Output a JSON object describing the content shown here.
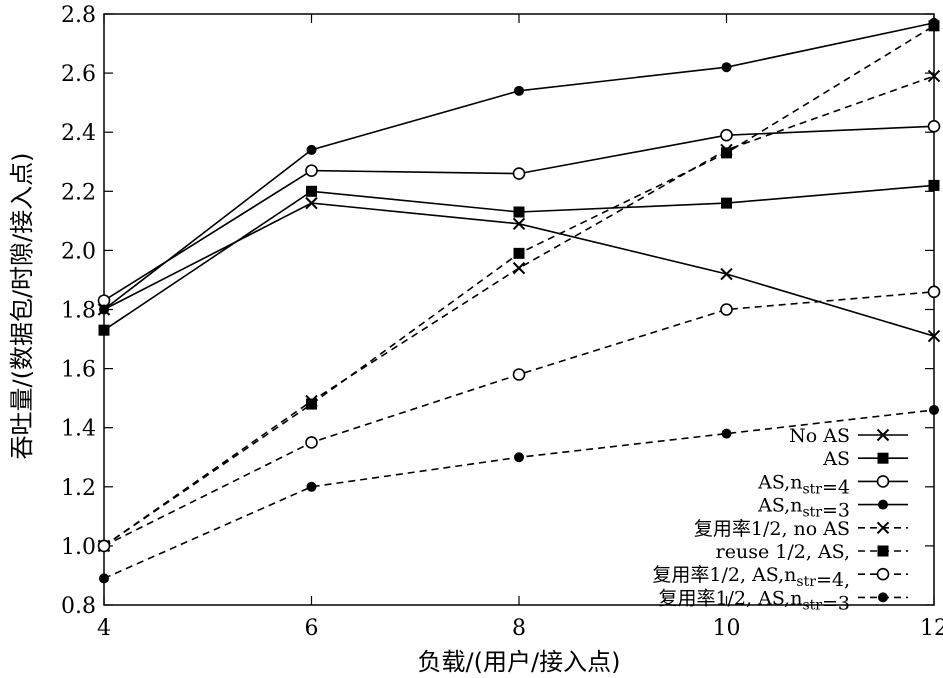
{
  "chart_data": {
    "type": "line",
    "title": "",
    "xlabel": "负载/(用户/接入点)",
    "ylabel": "吞吐量/(数据包/时隙/接入点)",
    "xlim": [
      4,
      12
    ],
    "ylim": [
      0.8,
      2.8
    ],
    "x_ticks": [
      "4",
      "6",
      "8",
      "10",
      "12"
    ],
    "y_ticks": [
      "0.8",
      "1.0",
      "1.2",
      "1.4",
      "1.6",
      "1.8",
      "2.0",
      "2.2",
      "2.4",
      "2.6",
      "2.8"
    ],
    "x": [
      4,
      6,
      8,
      10,
      12
    ],
    "grid": false,
    "legend_position": "bottom-right",
    "series": [
      {
        "label_parts": [
          {
            "text": "No AS"
          }
        ],
        "marker": "x",
        "dashed": false,
        "values": [
          1.8,
          2.16,
          2.09,
          1.92,
          1.71
        ]
      },
      {
        "label_parts": [
          {
            "text": "AS"
          }
        ],
        "marker": "square",
        "dashed": false,
        "values": [
          1.73,
          2.2,
          2.13,
          2.16,
          2.22
        ]
      },
      {
        "label_parts": [
          {
            "text": "AS,n"
          },
          {
            "text": "str",
            "sub": true
          },
          {
            "text": "=4"
          }
        ],
        "marker": "circle-open",
        "dashed": false,
        "values": [
          1.83,
          2.27,
          2.26,
          2.39,
          2.42
        ]
      },
      {
        "label_parts": [
          {
            "text": "AS,n"
          },
          {
            "text": "str",
            "sub": true
          },
          {
            "text": "=3"
          }
        ],
        "marker": "circle-filled",
        "dashed": false,
        "values": [
          1.8,
          2.34,
          2.54,
          2.62,
          2.77
        ]
      },
      {
        "label_parts": [
          {
            "text": "复用率1/2, no AS"
          }
        ],
        "marker": "x",
        "dashed": true,
        "values": [
          1.0,
          1.49,
          1.94,
          2.34,
          2.59
        ]
      },
      {
        "label_parts": [
          {
            "text": "reuse 1/2, AS,"
          }
        ],
        "marker": "square",
        "dashed": true,
        "values": [
          1.0,
          1.48,
          1.99,
          2.33,
          2.76
        ]
      },
      {
        "label_parts": [
          {
            "text": "复用率1/2, AS,n"
          },
          {
            "text": "str",
            "sub": true
          },
          {
            "text": "=4,"
          }
        ],
        "marker": "circle-open",
        "dashed": true,
        "values": [
          1.0,
          1.35,
          1.58,
          1.8,
          1.86
        ]
      },
      {
        "label_parts": [
          {
            "text": "复用率1/2, AS,n"
          },
          {
            "text": "str",
            "sub": true
          },
          {
            "text": "=3"
          }
        ],
        "marker": "circle-filled",
        "dashed": true,
        "values": [
          0.89,
          1.2,
          1.3,
          1.38,
          1.46
        ]
      }
    ]
  }
}
